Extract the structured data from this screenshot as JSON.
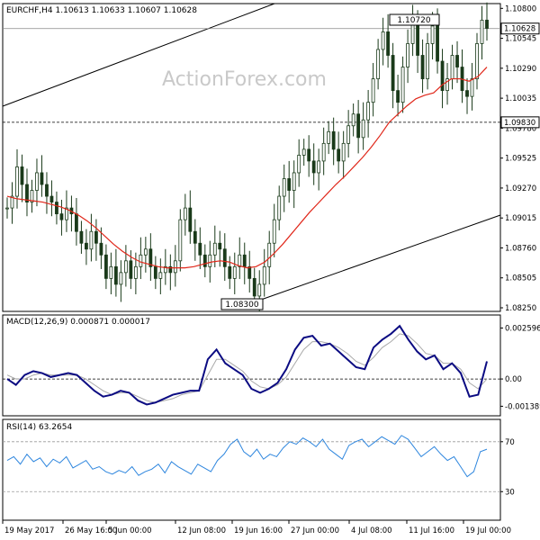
{
  "header": {
    "symbol_line": "EURCHF,H4  1.10613 1.10633 1.10607 1.10628",
    "watermark": "ActionForex.com"
  },
  "chart_data": [
    {
      "type": "candlestick",
      "title": "EURCHF,H4  1.10613 1.10633 1.10607 1.10628",
      "ylim": [
        1.0825,
        1.1081
      ],
      "y_ticks": [
        "1.10800",
        "1.10545",
        "1.10290",
        "1.10035",
        "1.09780",
        "1.09525",
        "1.09270",
        "1.09015",
        "1.08760",
        "1.08505",
        "1.08250"
      ],
      "current_price_label": "1.10628",
      "level_line_label": "1.09830",
      "annotations": [
        "1.10720",
        "1.08300"
      ],
      "series": [
        {
          "name": "EURCHF H4 close (approx)",
          "values": [
            1.091,
            1.092,
            1.0945,
            1.093,
            1.0915,
            1.0925,
            1.094,
            1.093,
            1.092,
            1.0915,
            1.0905,
            1.09,
            1.091,
            1.0905,
            1.089,
            1.088,
            1.0875,
            1.089,
            1.088,
            1.087,
            1.085,
            1.086,
            1.0845,
            1.0855,
            1.0865,
            1.085,
            1.086,
            1.087,
            1.0875,
            1.086,
            1.085,
            1.0855,
            1.086,
            1.0855,
            1.0865,
            1.09,
            1.091,
            1.089,
            1.088,
            1.087,
            1.086,
            1.087,
            1.088,
            1.0875,
            1.086,
            1.085,
            1.086,
            1.087,
            1.086,
            1.085,
            1.0835,
            1.0845,
            1.086,
            1.088,
            1.09,
            1.092,
            1.0935,
            1.0925,
            1.094,
            1.0955,
            1.096,
            1.095,
            1.094,
            1.095,
            1.0965,
            1.0975,
            1.096,
            1.095,
            1.0965,
            1.098,
            1.099,
            1.097,
            1.0985,
            1.1,
            1.102,
            1.1045,
            1.106,
            1.104,
            1.101,
            1.1,
            1.103,
            1.105,
            1.1068,
            1.104,
            1.102,
            1.105,
            1.1065,
            1.1035,
            1.101,
            1.102,
            1.104,
            1.103,
            1.101,
            1.1005,
            1.102,
            1.105,
            1.107,
            1.1063
          ]
        },
        {
          "name": "moving average (red)",
          "values": [
            1.092,
            1.0918,
            1.0917,
            1.0916,
            1.0915,
            1.0913,
            1.0911,
            1.0908,
            1.0904,
            1.0899,
            1.0893,
            1.0886,
            1.0879,
            1.0873,
            1.0868,
            1.0864,
            1.0862,
            1.086,
            1.0859,
            1.0859,
            1.0859,
            1.086,
            1.0862,
            1.0864,
            1.0865,
            1.0864,
            1.0861,
            1.0859,
            1.086,
            1.0864,
            1.0871,
            1.0879,
            1.0888,
            1.0897,
            1.0906,
            1.0914,
            1.0922,
            1.093,
            1.0937,
            1.0945,
            1.0953,
            1.0962,
            1.0972,
            1.0983,
            1.099,
            1.0997,
            1.1003,
            1.1006,
            1.1008,
            1.1015,
            1.102,
            1.102,
            1.1018,
            1.1022,
            1.103
          ]
        }
      ],
      "trendlines": [
        "upper channel line",
        "lower channel line"
      ]
    },
    {
      "type": "line",
      "title": "MACD(12,26,9) 0.000871 0.000017",
      "y_ticks": [
        "0.002596",
        "0.00",
        "-0.001389"
      ],
      "ylim": [
        -0.0016,
        0.0028
      ],
      "series": [
        {
          "name": "MACD",
          "values": [
            0.0,
            -0.0003,
            0.0002,
            0.0004,
            0.0003,
            0.0001,
            0.0002,
            0.0003,
            0.0002,
            -0.0002,
            -0.0006,
            -0.0009,
            -0.0008,
            -0.0006,
            -0.0007,
            -0.0011,
            -0.0013,
            -0.0012,
            -0.001,
            -0.0008,
            -0.0007,
            -0.0006,
            -0.0006,
            0.001,
            0.0015,
            0.0008,
            0.0005,
            0.0002,
            -0.0005,
            -0.0007,
            -0.0005,
            -0.0002,
            0.0005,
            0.0015,
            0.0021,
            0.0022,
            0.0017,
            0.0018,
            0.0014,
            0.001,
            0.0006,
            0.0005,
            0.0016,
            0.002,
            0.0023,
            0.0027,
            0.002,
            0.0014,
            0.001,
            0.0012,
            0.0005,
            0.0008,
            0.0003,
            -0.0009,
            -0.0008,
            0.0009
          ]
        },
        {
          "name": "Signal",
          "values": [
            0.0002,
            0.0,
            0.0,
            0.0002,
            0.0003,
            0.0002,
            0.0002,
            0.0002,
            0.0002,
            0.0,
            -0.0003,
            -0.0006,
            -0.0008,
            -0.0007,
            -0.0007,
            -0.0009,
            -0.0011,
            -0.0012,
            -0.0011,
            -0.001,
            -0.0008,
            -0.0007,
            -0.0006,
            0.0002,
            0.001,
            0.001,
            0.0007,
            0.0004,
            -0.0001,
            -0.0004,
            -0.0005,
            -0.0003,
            0.0001,
            0.0008,
            0.0015,
            0.0019,
            0.0019,
            0.0018,
            0.0016,
            0.0013,
            0.0009,
            0.0007,
            0.0011,
            0.0016,
            0.0019,
            0.0023,
            0.0022,
            0.0018,
            0.0013,
            0.0012,
            0.0008,
            0.0008,
            0.0005,
            -0.0002,
            -0.0005,
            0.0
          ]
        }
      ]
    },
    {
      "type": "line",
      "title": "RSI(14) 63.2654",
      "y_ticks": [
        "70",
        "30"
      ],
      "ylim": [
        10,
        85
      ],
      "series": [
        {
          "name": "RSI(14)",
          "values": [
            55,
            58,
            52,
            60,
            54,
            57,
            50,
            56,
            53,
            58,
            49,
            52,
            55,
            48,
            50,
            46,
            44,
            47,
            45,
            50,
            43,
            46,
            48,
            52,
            45,
            54,
            50,
            47,
            44,
            52,
            49,
            46,
            55,
            60,
            68,
            72,
            62,
            58,
            64,
            56,
            60,
            58,
            65,
            70,
            68,
            73,
            70,
            66,
            72,
            64,
            60,
            56,
            67,
            70,
            72,
            66,
            70,
            74,
            71,
            68,
            75,
            72,
            65,
            58,
            62,
            66,
            60,
            55,
            58,
            50,
            42,
            46,
            62,
            64
          ]
        }
      ]
    }
  ],
  "x_axis": {
    "tick_labels": [
      "19 May 2017",
      "26 May 16:00",
      "5 Jun 00:00",
      "12 Jun 08:00",
      "19 Jun 16:00",
      "27 Jun 00:00",
      "4 Jul 08:00",
      "11 Jul 16:00",
      "19 Jul 00:00"
    ]
  },
  "colors": {
    "candle": "#1a3a1a",
    "ma": "#e0271a",
    "macd": "#0b0b82",
    "signal": "#a9a9a9",
    "rsi": "#2e86de",
    "grid_dash": "#000000"
  }
}
